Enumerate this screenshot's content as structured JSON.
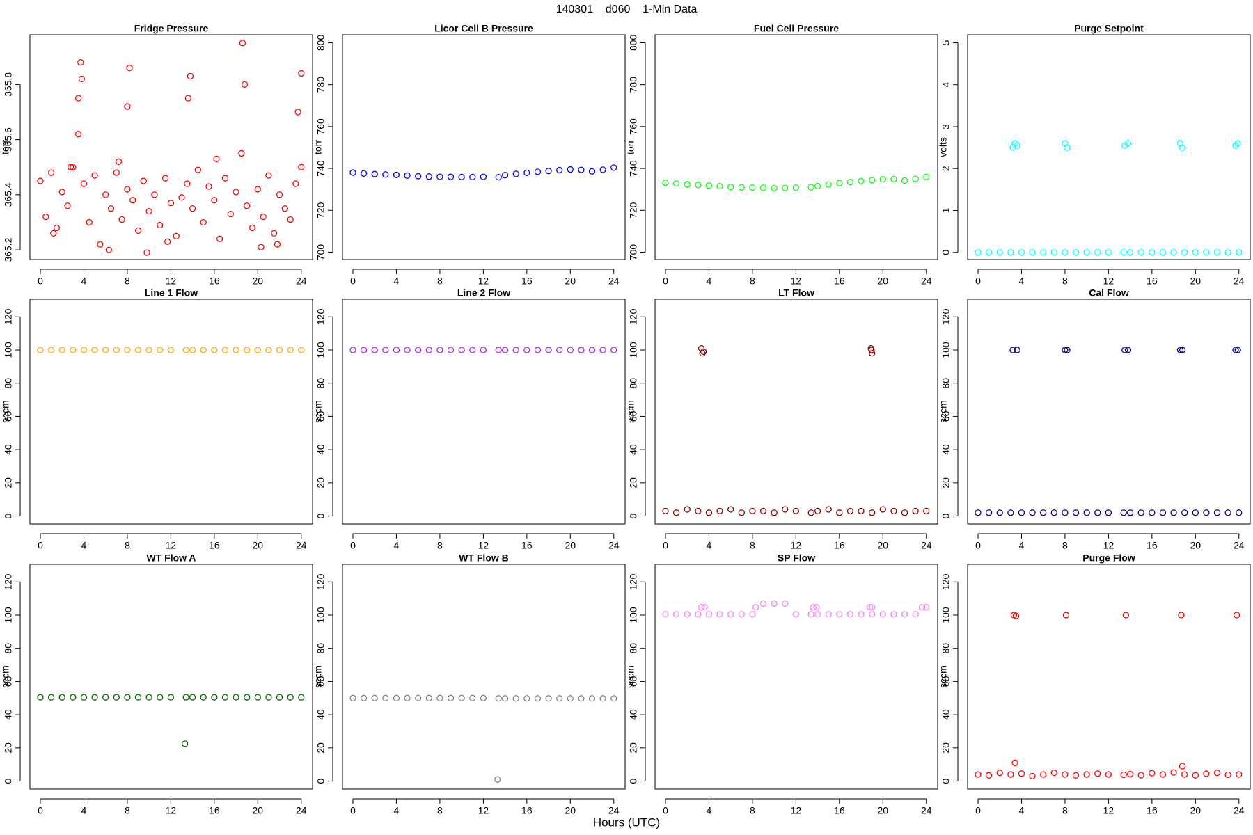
{
  "title": "140301    d060    1-Min Data",
  "x_label": "Hours (UTC)",
  "chart_data": [
    {
      "type": "scatter",
      "title": "Fridge Pressure",
      "y_label": "torr",
      "color": "#ff0000",
      "x": [
        0,
        0.5,
        1,
        1.5,
        2,
        2.5,
        3,
        3.5,
        4,
        4.5,
        5,
        5.5,
        6,
        6.5,
        7,
        7.5,
        8,
        8.5,
        9,
        9.5,
        10,
        10.5,
        11,
        11.5,
        12,
        12.5,
        13,
        13.5,
        14,
        14.5,
        15,
        15.5,
        16,
        16.5,
        17,
        17.5,
        18,
        18.5,
        19,
        19.5,
        20,
        20.5,
        21,
        21.5,
        22,
        22.5,
        23,
        23.5,
        24,
        3.5,
        3.7,
        3.8,
        8.0,
        8.2,
        13.6,
        13.8,
        18.6,
        18.8,
        23.7,
        24.0,
        1.2,
        6.3,
        9.8,
        11.7,
        16.2,
        20.3,
        21.8,
        2.8,
        7.2
      ],
      "values": [
        365.45,
        365.32,
        365.48,
        365.28,
        365.41,
        365.36,
        365.5,
        365.62,
        365.44,
        365.3,
        365.47,
        365.22,
        365.4,
        365.35,
        365.48,
        365.31,
        365.42,
        365.38,
        365.27,
        365.45,
        365.34,
        365.4,
        365.29,
        365.46,
        365.37,
        365.25,
        365.39,
        365.44,
        365.35,
        365.49,
        365.3,
        365.43,
        365.38,
        365.24,
        365.46,
        365.33,
        365.41,
        365.55,
        365.36,
        365.28,
        365.42,
        365.32,
        365.47,
        365.26,
        365.4,
        365.35,
        365.31,
        365.44,
        365.5,
        365.75,
        365.88,
        365.82,
        365.72,
        365.86,
        365.75,
        365.83,
        365.95,
        365.8,
        365.7,
        365.84,
        365.26,
        365.2,
        365.19,
        365.23,
        365.53,
        365.21,
        365.22,
        365.5,
        365.52
      ],
      "xlim": [
        -0.96,
        25.04
      ],
      "xticks": [
        0,
        4,
        8,
        12,
        16,
        20,
        24
      ],
      "ylim": [
        365.165,
        365.98
      ],
      "yticks": [
        365.2,
        365.4,
        365.6,
        365.8
      ]
    },
    {
      "type": "scatter",
      "title": "Licor Cell B Pressure",
      "y_label": "torr",
      "color": "#0000ff",
      "x": [
        0,
        1,
        2,
        3,
        4,
        5,
        6,
        7,
        8,
        9,
        10,
        11,
        12,
        13.4,
        14,
        15,
        16,
        17,
        18,
        19,
        20,
        21,
        22,
        23,
        24
      ],
      "values": [
        738,
        737.6,
        737.3,
        737.1,
        736.9,
        736.6,
        736.3,
        736.1,
        736,
        736,
        735.9,
        735.9,
        736,
        735.8,
        736.8,
        737.4,
        737.9,
        738.4,
        738.8,
        739.2,
        739.5,
        739.3,
        738.6,
        739.4,
        740.4
      ],
      "xlim": [
        -0.96,
        25.04
      ],
      "xticks": [
        0,
        4,
        8,
        12,
        16,
        20,
        24
      ],
      "ylim": [
        696.5,
        803.8
      ],
      "yticks": [
        700,
        720,
        740,
        760,
        780,
        800
      ]
    },
    {
      "type": "scatter",
      "title": "Fuel Cell Pressure",
      "y_label": "torr",
      "color": "#00ff00",
      "x": [
        0,
        1,
        2,
        3,
        4,
        5,
        6,
        7,
        8,
        9,
        10,
        11,
        12,
        13.4,
        14,
        15,
        16,
        17,
        18,
        19,
        20,
        21,
        22,
        23,
        24
      ],
      "values": [
        733.2,
        732.8,
        732.4,
        732.1,
        731.8,
        731.5,
        731.1,
        730.9,
        730.8,
        730.7,
        730.5,
        730.6,
        730.8,
        731,
        731.6,
        732.3,
        733,
        733.5,
        734,
        734.4,
        734.8,
        734.9,
        734.2,
        735,
        735.9
      ],
      "xlim": [
        -0.96,
        25.04
      ],
      "xticks": [
        0,
        4,
        8,
        12,
        16,
        20,
        24
      ],
      "ylim": [
        696.5,
        803.8
      ],
      "yticks": [
        700,
        720,
        740,
        760,
        780,
        800
      ]
    },
    {
      "type": "scatter",
      "title": "Purge Setpoint",
      "y_label": "volts",
      "color": "#00ffff",
      "x": [
        0,
        1,
        2,
        3,
        4,
        5,
        6,
        7,
        8,
        9,
        10,
        11,
        12,
        13.4,
        14,
        15,
        16,
        17,
        18,
        19,
        20,
        21,
        22,
        23,
        24,
        3.2,
        3.4,
        3.6,
        8.0,
        8.2,
        13.5,
        13.8,
        18.6,
        18.8,
        23.7,
        23.9
      ],
      "values": [
        0,
        0,
        0,
        0,
        0,
        0,
        0,
        0,
        0,
        0,
        0,
        0,
        0,
        0,
        0,
        0,
        0,
        0,
        0,
        0,
        0,
        0,
        0,
        0,
        0,
        2.5,
        2.6,
        2.55,
        2.6,
        2.5,
        2.55,
        2.6,
        2.6,
        2.5,
        2.55,
        2.6
      ],
      "xlim": [
        -0.96,
        25.04
      ],
      "xticks": [
        0,
        4,
        8,
        12,
        16,
        20,
        24
      ],
      "ylim": [
        -0.17,
        5.19
      ],
      "yticks": [
        0,
        1,
        2,
        3,
        4,
        5
      ]
    },
    {
      "type": "scatter",
      "title": "Line 1 Flow",
      "y_label": "sccm",
      "color": "#ffa500",
      "x": [
        0,
        1,
        2,
        3,
        4,
        5,
        6,
        7,
        8,
        9,
        10,
        11,
        12,
        13.4,
        14,
        15,
        16,
        17,
        18,
        19,
        20,
        21,
        22,
        23,
        24
      ],
      "values": [
        100,
        100,
        100,
        100,
        100,
        100,
        100,
        100,
        100,
        100,
        100,
        100,
        100,
        100,
        100,
        100,
        100,
        100,
        100,
        100,
        100,
        100,
        100,
        100,
        100
      ],
      "xlim": [
        -0.96,
        25.04
      ],
      "xticks": [
        0,
        4,
        8,
        12,
        16,
        20,
        24
      ],
      "ylim": [
        -4.8,
        130.6
      ],
      "yticks": [
        0,
        20,
        40,
        60,
        80,
        100,
        120
      ]
    },
    {
      "type": "scatter",
      "title": "Line 2 Flow",
      "y_label": "sccm",
      "color": "#a020f0",
      "x": [
        0,
        1,
        2,
        3,
        4,
        5,
        6,
        7,
        8,
        9,
        10,
        11,
        12,
        13.4,
        14,
        15,
        16,
        17,
        18,
        19,
        20,
        21,
        22,
        23,
        24
      ],
      "values": [
        100,
        100,
        100,
        100,
        100,
        100,
        100,
        100,
        100,
        100,
        100,
        100,
        100,
        100,
        100,
        100,
        100,
        100,
        100,
        100,
        100,
        100,
        100,
        100,
        100
      ],
      "xlim": [
        -0.96,
        25.04
      ],
      "xticks": [
        0,
        4,
        8,
        12,
        16,
        20,
        24
      ],
      "ylim": [
        -4.8,
        130.6
      ],
      "yticks": [
        0,
        20,
        40,
        60,
        80,
        100,
        120
      ]
    },
    {
      "type": "scatter",
      "title": "LT Flow",
      "y_label": "sccm",
      "color": "#8b0000",
      "x": [
        0,
        1,
        2,
        3,
        4,
        5,
        6,
        7,
        8,
        9,
        10,
        11,
        12,
        13.4,
        14,
        15,
        16,
        17,
        18,
        19,
        20,
        21,
        22,
        23,
        24,
        3.3,
        3.5,
        3.4,
        18.9,
        19.0,
        18.95
      ],
      "values": [
        3,
        2,
        4,
        3,
        2,
        3,
        4,
        2,
        3,
        3,
        2,
        4,
        3,
        2,
        3,
        4,
        2,
        3,
        3,
        2,
        4,
        3,
        2,
        3,
        3,
        101,
        99,
        98,
        101,
        98,
        100
      ],
      "xlim": [
        -0.96,
        25.04
      ],
      "xticks": [
        0,
        4,
        8,
        12,
        16,
        20,
        24
      ],
      "ylim": [
        -4.8,
        130.6
      ],
      "yticks": [
        0,
        20,
        40,
        60,
        80,
        100,
        120
      ]
    },
    {
      "type": "scatter",
      "title": "Cal Flow",
      "y_label": "sccm",
      "color": "#000080",
      "x": [
        0,
        1,
        2,
        3,
        4,
        5,
        6,
        7,
        8,
        9,
        10,
        11,
        12,
        13.4,
        14,
        15,
        16,
        17,
        18,
        19,
        20,
        21,
        22,
        23,
        24,
        3.2,
        3.6,
        8.0,
        8.2,
        13.5,
        13.8,
        18.6,
        18.8,
        23.7,
        23.9
      ],
      "values": [
        2,
        2,
        2,
        2,
        2,
        2,
        2,
        2,
        2,
        2,
        2,
        2,
        2,
        2,
        2,
        2,
        2,
        2,
        2,
        2,
        2,
        2,
        2,
        2,
        2,
        100,
        100,
        100,
        100,
        100,
        100,
        100,
        100,
        100,
        100
      ],
      "xlim": [
        -0.96,
        25.04
      ],
      "xticks": [
        0,
        4,
        8,
        12,
        16,
        20,
        24
      ],
      "ylim": [
        -4.8,
        130.6
      ],
      "yticks": [
        0,
        20,
        40,
        60,
        80,
        100,
        120
      ]
    },
    {
      "type": "scatter",
      "title": "WT Flow A",
      "y_label": "sccm",
      "color": "#006400",
      "x": [
        0,
        1,
        2,
        3,
        4,
        5,
        6,
        7,
        8,
        9,
        10,
        11,
        12,
        13.4,
        14,
        15,
        16,
        17,
        18,
        19,
        20,
        21,
        22,
        23,
        24,
        13.3
      ],
      "values": [
        50.5,
        50.5,
        50.5,
        50.5,
        50.5,
        50.5,
        50.5,
        50.5,
        50.5,
        50.5,
        50.5,
        50.5,
        50.5,
        50.5,
        50.5,
        50.5,
        50.5,
        50.5,
        50.5,
        50.5,
        50.5,
        50.5,
        50.5,
        50.5,
        50.5,
        22.5
      ],
      "xlim": [
        -0.96,
        25.04
      ],
      "xticks": [
        0,
        4,
        8,
        12,
        16,
        20,
        24
      ],
      "ylim": [
        -4.8,
        130.6
      ],
      "yticks": [
        0,
        20,
        40,
        60,
        80,
        100,
        120
      ]
    },
    {
      "type": "scatter",
      "title": "WT Flow B",
      "y_label": "sccm",
      "color": "#808080",
      "x": [
        0,
        1,
        2,
        3,
        4,
        5,
        6,
        7,
        8,
        9,
        10,
        11,
        12,
        13.4,
        14,
        15,
        16,
        17,
        18,
        19,
        20,
        21,
        22,
        23,
        24,
        13.3
      ],
      "values": [
        50,
        50,
        50,
        50,
        50,
        50,
        50,
        50,
        50,
        50,
        50,
        50,
        50,
        49.8,
        49.8,
        49.8,
        49.8,
        49.8,
        49.8,
        49.8,
        49.8,
        49.8,
        49.8,
        49.8,
        49.8,
        1
      ],
      "xlim": [
        -0.96,
        25.04
      ],
      "xticks": [
        0,
        4,
        8,
        12,
        16,
        20,
        24
      ],
      "ylim": [
        -4.8,
        130.6
      ],
      "yticks": [
        0,
        20,
        40,
        60,
        80,
        100,
        120
      ]
    },
    {
      "type": "scatter",
      "title": "SP Flow",
      "y_label": "sccm",
      "color": "#ee82ee",
      "x": [
        0,
        1,
        2,
        3,
        4,
        5,
        6,
        7,
        8,
        9,
        10,
        11,
        12,
        13.4,
        14,
        15,
        16,
        17,
        18,
        19,
        20,
        21,
        22,
        23,
        24,
        3.3,
        3.6,
        8.3,
        13.6,
        13.9,
        18.8,
        19.0,
        23.6
      ],
      "values": [
        100.5,
        100.5,
        100.5,
        100.5,
        100.5,
        100.5,
        100.5,
        100.5,
        100.5,
        107,
        107,
        107,
        100.5,
        100.5,
        100.5,
        100.5,
        100.5,
        100.5,
        100.5,
        100.5,
        100.5,
        100.5,
        100.5,
        100.5,
        104.7,
        104.7,
        104.7,
        104.7,
        104.7,
        104.7,
        104.7,
        104.7,
        104.7
      ],
      "xlim": [
        -0.96,
        25.04
      ],
      "xticks": [
        0,
        4,
        8,
        12,
        16,
        20,
        24
      ],
      "ylim": [
        -4.8,
        130.6
      ],
      "yticks": [
        0,
        20,
        40,
        60,
        80,
        100,
        120
      ]
    },
    {
      "type": "scatter",
      "title": "Purge Flow",
      "y_label": "sccm",
      "color": "#ff0000",
      "x": [
        0,
        1,
        2,
        3,
        4,
        5,
        6,
        7,
        8,
        9,
        10,
        11,
        12,
        13.4,
        14,
        15,
        16,
        17,
        18,
        19,
        20,
        21,
        22,
        23,
        24,
        3.3,
        3.5,
        3.4,
        8.1,
        13.6,
        18.7,
        23.8,
        18.8
      ],
      "values": [
        4,
        3.5,
        5,
        4,
        4.5,
        3,
        4,
        5,
        4,
        3.5,
        4,
        4.5,
        4,
        3.8,
        4.2,
        3.6,
        4.8,
        4,
        5.2,
        4,
        3.5,
        4.4,
        5,
        3.8,
        4,
        100,
        99.5,
        11,
        100,
        100,
        100,
        100,
        9
      ],
      "xlim": [
        -0.96,
        25.04
      ],
      "xticks": [
        0,
        4,
        8,
        12,
        16,
        20,
        24
      ],
      "ylim": [
        -4.8,
        130.6
      ],
      "yticks": [
        0,
        20,
        40,
        60,
        80,
        100,
        120
      ]
    }
  ]
}
